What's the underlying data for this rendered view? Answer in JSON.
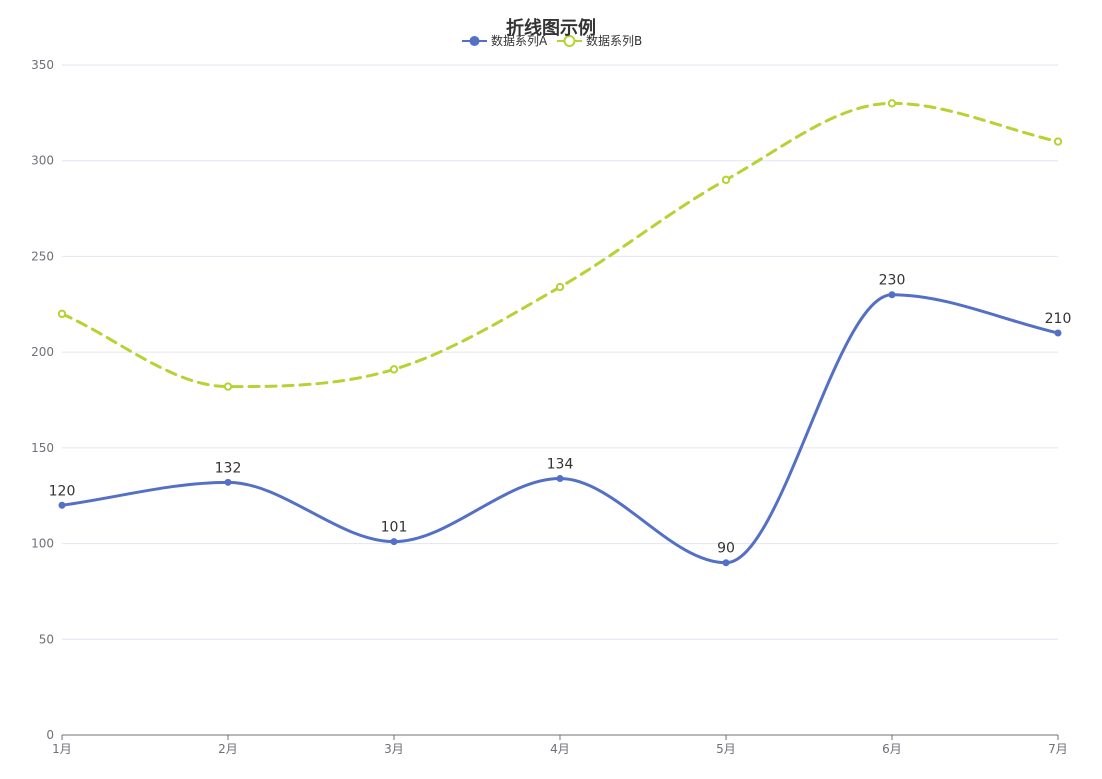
{
  "chart_data": {
    "type": "line",
    "title": "折线图示例",
    "categories": [
      "1月",
      "2月",
      "3月",
      "4月",
      "5月",
      "6月",
      "7月"
    ],
    "ylim": [
      0,
      350
    ],
    "yticks": [
      0,
      50,
      100,
      150,
      200,
      250,
      300,
      350
    ],
    "grid": true,
    "legend_position": "top-center",
    "series": [
      {
        "name": "数据系列A",
        "values": [
          120,
          132,
          101,
          134,
          90,
          230,
          210
        ],
        "color": "#5470c6",
        "line_style": "solid",
        "smooth": true,
        "show_labels": true,
        "marker": "filled-circle"
      },
      {
        "name": "数据系列B",
        "values": [
          220,
          182,
          191,
          234,
          290,
          330,
          310
        ],
        "color": "#b5d334",
        "line_style": "dashed",
        "smooth": true,
        "show_labels": false,
        "marker": "hollow-circle"
      }
    ]
  }
}
